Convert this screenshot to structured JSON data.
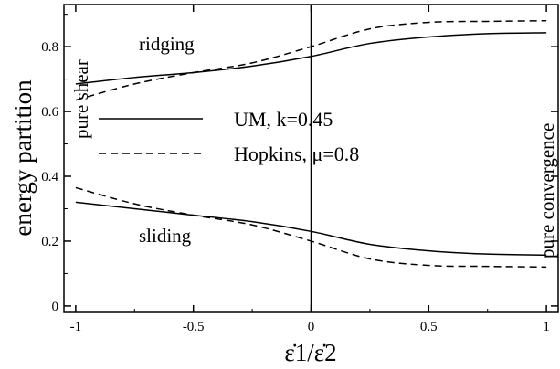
{
  "chart_data": {
    "type": "line",
    "xlabel": "ε̇1/ε̇2",
    "ylabel": "energy partition",
    "xlim": [
      -1.05,
      1.05
    ],
    "ylim": [
      -0.02,
      0.93
    ],
    "x_ticks": [
      -1,
      -0.5,
      0,
      0.5,
      1
    ],
    "x_tick_labels": [
      "-1",
      "-0.5",
      "0",
      "0.5",
      "1"
    ],
    "y_ticks": [
      0,
      0.2,
      0.4,
      0.6,
      0.8
    ],
    "y_tick_labels": [
      "0",
      "0.2",
      "0.4",
      "0.6",
      "0.8"
    ],
    "vertical_line_x": 0,
    "legend": {
      "placement": "center-left",
      "entries": [
        {
          "label": "UM, k=0.45",
          "style": "solid"
        },
        {
          "label": "Hopkins, μ=0.8",
          "style": "dashed"
        }
      ]
    },
    "annotations": {
      "ridging": "ridging",
      "sliding": "sliding",
      "pure_shear": "pure shear",
      "pure_convergence": "pure convergence"
    },
    "series": [
      {
        "style": "solid",
        "group": "ridging",
        "x": [
          -1,
          -0.75,
          -0.5,
          -0.25,
          0,
          0.25,
          0.5,
          0.75,
          1
        ],
        "y": [
          0.685,
          0.705,
          0.72,
          0.74,
          0.77,
          0.81,
          0.83,
          0.84,
          0.843
        ]
      },
      {
        "style": "dashed",
        "group": "ridging",
        "x": [
          -1,
          -0.75,
          -0.5,
          -0.25,
          0,
          0.25,
          0.5,
          0.75,
          1
        ],
        "y": [
          0.635,
          0.685,
          0.72,
          0.75,
          0.8,
          0.855,
          0.875,
          0.878,
          0.88
        ]
      },
      {
        "style": "solid",
        "group": "sliding",
        "x": [
          -1,
          -0.75,
          -0.5,
          -0.25,
          0,
          0.25,
          0.5,
          0.75,
          1
        ],
        "y": [
          0.32,
          0.3,
          0.28,
          0.26,
          0.23,
          0.19,
          0.17,
          0.16,
          0.157
        ]
      },
      {
        "style": "dashed",
        "group": "sliding",
        "x": [
          -1,
          -0.75,
          -0.5,
          -0.25,
          0,
          0.25,
          0.5,
          0.75,
          1
        ],
        "y": [
          0.365,
          0.315,
          0.28,
          0.25,
          0.2,
          0.145,
          0.125,
          0.122,
          0.12
        ]
      }
    ]
  }
}
